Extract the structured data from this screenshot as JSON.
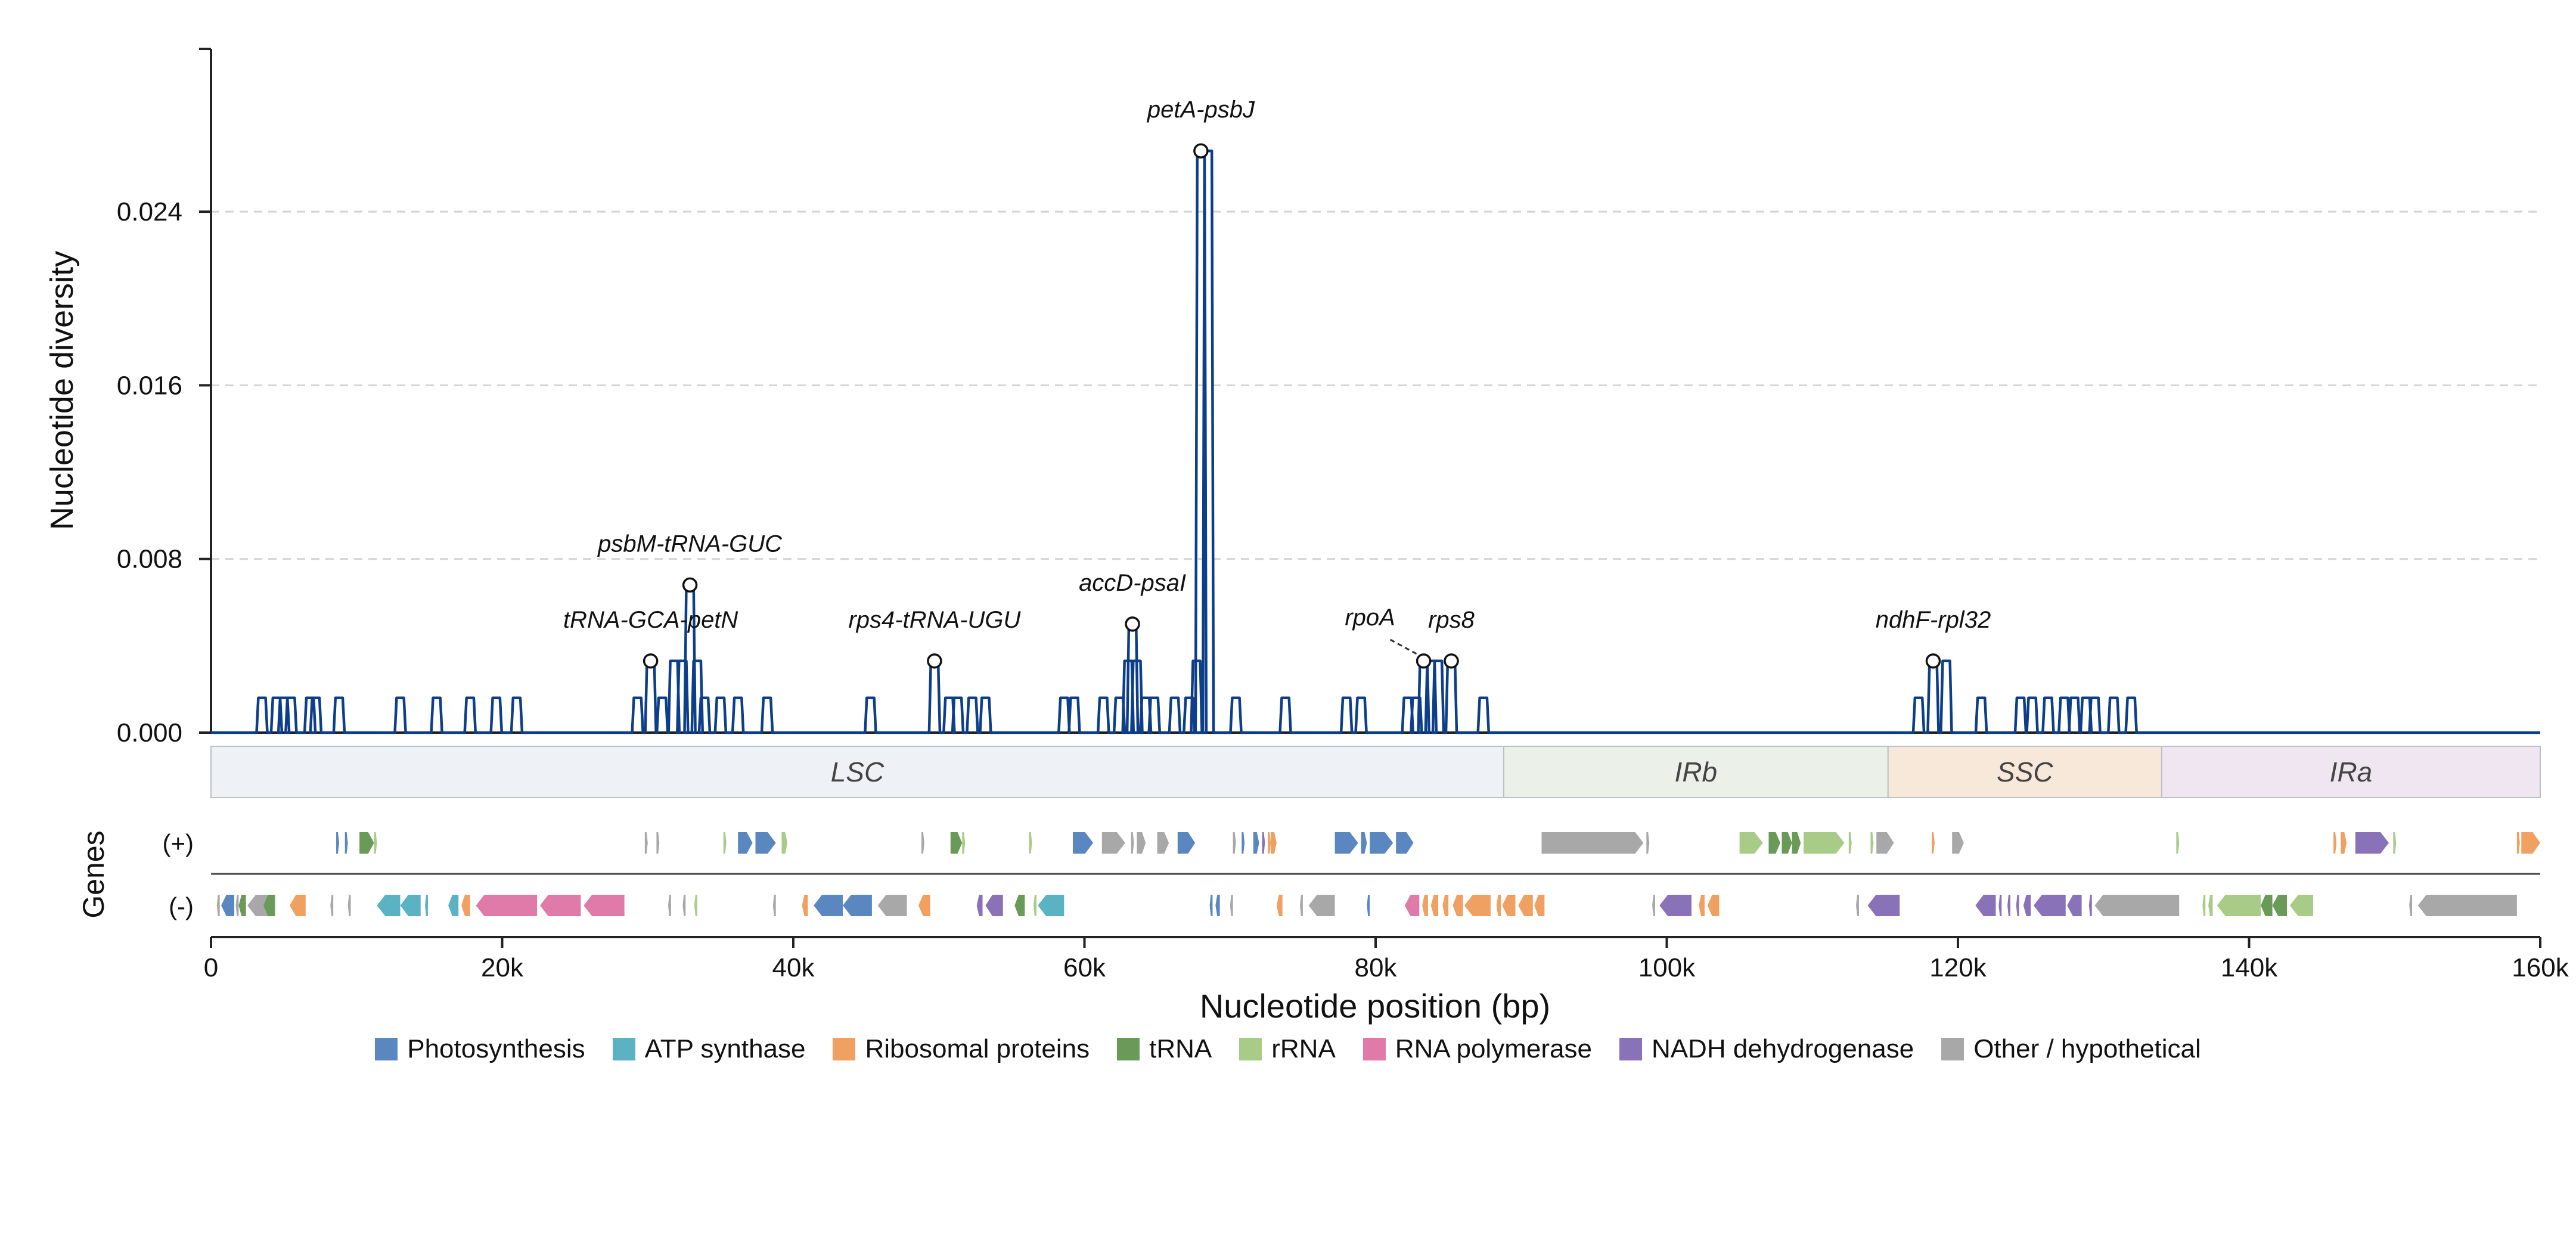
{
  "chart_data": {
    "type": "line",
    "xlabel": "Nucleotide position (bp)",
    "ylabel": "Nucleotide diversity",
    "genes_label": "Genes",
    "strand_labels": {
      "plus": "(+)",
      "minus": "(-)"
    },
    "xlim": [
      0,
      160000
    ],
    "ylim": [
      0,
      0.0315
    ],
    "x_ticks": [
      0,
      20000,
      40000,
      60000,
      80000,
      100000,
      120000,
      140000,
      160000
    ],
    "x_tick_labels": [
      "0",
      "20k",
      "40k",
      "60k",
      "80k",
      "100k",
      "120k",
      "140k",
      "160k"
    ],
    "y_ticks": [
      0.0,
      0.008,
      0.016,
      0.024
    ],
    "y_tick_labels": [
      "0.000",
      "0.008",
      "0.016",
      "0.024"
    ],
    "grid": "horizontal dashed",
    "line_color": "#0d3e8a",
    "regions": [
      {
        "name": "LSC",
        "start": 0,
        "end": 88800,
        "color": "#eef2f6"
      },
      {
        "name": "IRb",
        "start": 88800,
        "end": 115200,
        "color": "#ebf1e8"
      },
      {
        "name": "SSC",
        "start": 115200,
        "end": 134000,
        "color": "#f8e8d9"
      },
      {
        "name": "IRa",
        "start": 134000,
        "end": 160000,
        "color": "#f0e6f1"
      }
    ],
    "peaks": [
      [
        3500,
        0.0016
      ],
      [
        4500,
        0.0016
      ],
      [
        5000,
        0.0016
      ],
      [
        5500,
        0.0016
      ],
      [
        6800,
        0.0016
      ],
      [
        7200,
        0.0016
      ],
      [
        8800,
        0.0016
      ],
      [
        13000,
        0.0016
      ],
      [
        15500,
        0.0016
      ],
      [
        17800,
        0.0016
      ],
      [
        19600,
        0.0016
      ],
      [
        21000,
        0.0016
      ],
      [
        29300,
        0.0016
      ],
      [
        30200,
        0.0033
      ],
      [
        31000,
        0.0016
      ],
      [
        31800,
        0.0033
      ],
      [
        32400,
        0.0033
      ],
      [
        32900,
        0.0068
      ],
      [
        33400,
        0.0033
      ],
      [
        33900,
        0.0016
      ],
      [
        35000,
        0.0016
      ],
      [
        36200,
        0.0016
      ],
      [
        38200,
        0.0016
      ],
      [
        45300,
        0.0016
      ],
      [
        49700,
        0.0033
      ],
      [
        50700,
        0.0016
      ],
      [
        51300,
        0.0016
      ],
      [
        52300,
        0.0016
      ],
      [
        53200,
        0.0016
      ],
      [
        58600,
        0.0016
      ],
      [
        59300,
        0.0016
      ],
      [
        61300,
        0.0016
      ],
      [
        62400,
        0.0016
      ],
      [
        63000,
        0.0033
      ],
      [
        63300,
        0.005
      ],
      [
        63600,
        0.0033
      ],
      [
        64200,
        0.0016
      ],
      [
        64800,
        0.0016
      ],
      [
        66200,
        0.0016
      ],
      [
        67200,
        0.0016
      ],
      [
        67700,
        0.0033
      ],
      [
        68000,
        0.0268
      ],
      [
        68500,
        0.0268
      ],
      [
        70400,
        0.0016
      ],
      [
        73800,
        0.0016
      ],
      [
        78000,
        0.0016
      ],
      [
        79000,
        0.0016
      ],
      [
        82200,
        0.0016
      ],
      [
        82800,
        0.0016
      ],
      [
        83300,
        0.0033
      ],
      [
        83800,
        0.0033
      ],
      [
        84300,
        0.0033
      ],
      [
        85200,
        0.0033
      ],
      [
        87400,
        0.0016
      ],
      [
        117300,
        0.0016
      ],
      [
        118300,
        0.0033
      ],
      [
        119200,
        0.0033
      ],
      [
        121600,
        0.0016
      ],
      [
        124300,
        0.0016
      ],
      [
        125100,
        0.0016
      ],
      [
        126200,
        0.0016
      ],
      [
        127300,
        0.0016
      ],
      [
        128000,
        0.0016
      ],
      [
        128800,
        0.0016
      ],
      [
        129400,
        0.0016
      ],
      [
        130700,
        0.0016
      ],
      [
        131900,
        0.0016
      ]
    ],
    "annotations": [
      {
        "label": "petA-psbJ",
        "x": 68000,
        "y": 0.0268
      },
      {
        "label": "psbM-tRNA-GUC",
        "x": 32900,
        "y": 0.0068
      },
      {
        "label": "tRNA-GCA-petN",
        "x": 30200,
        "y": 0.0033
      },
      {
        "label": "rps4-tRNA-UGU",
        "x": 49700,
        "y": 0.0033
      },
      {
        "label": "accD-psaI",
        "x": 63300,
        "y": 0.005
      },
      {
        "label": "rpoA",
        "x": 83300,
        "y": 0.0033
      },
      {
        "label": "rps8",
        "x": 85200,
        "y": 0.0033
      },
      {
        "label": "ndhF-rpl32",
        "x": 118300,
        "y": 0.0033
      }
    ],
    "categories": [
      {
        "name": "Photosynthesis",
        "color": "#5b87c0"
      },
      {
        "name": "ATP synthase",
        "color": "#5ab2c2"
      },
      {
        "name": "Ribosomal proteins",
        "color": "#f0a060"
      },
      {
        "name": "tRNA",
        "color": "#6a9a58"
      },
      {
        "name": "rRNA",
        "color": "#a8cc88"
      },
      {
        "name": "RNA polymerase",
        "color": "#e07aa8"
      },
      {
        "name": "NADH dehydrogenase",
        "color": "#8a72b8"
      },
      {
        "name": "Other / hypothetical",
        "color": "#a8a8a8"
      }
    ],
    "genes_plus": [
      [
        8600,
        8800,
        0
      ],
      [
        9200,
        9400,
        0
      ],
      [
        10200,
        11200,
        3
      ],
      [
        11200,
        11400,
        4
      ],
      [
        29800,
        30000,
        7
      ],
      [
        30600,
        30800,
        7
      ],
      [
        35200,
        35400,
        4
      ],
      [
        36200,
        37200,
        0
      ],
      [
        37400,
        38800,
        0
      ],
      [
        39200,
        39600,
        4
      ],
      [
        48800,
        49000,
        7
      ],
      [
        50800,
        51600,
        3
      ],
      [
        51600,
        51800,
        4
      ],
      [
        56200,
        56400,
        4
      ],
      [
        59200,
        60600,
        0
      ],
      [
        61200,
        62800,
        7
      ],
      [
        63200,
        63400,
        7
      ],
      [
        63600,
        64200,
        7
      ],
      [
        65000,
        65800,
        7
      ],
      [
        66400,
        67600,
        0
      ],
      [
        70200,
        70400,
        7
      ],
      [
        70800,
        71000,
        0
      ],
      [
        71600,
        72000,
        0
      ],
      [
        72200,
        72400,
        6
      ],
      [
        72600,
        72800,
        2
      ],
      [
        72800,
        73200,
        2
      ],
      [
        77200,
        78800,
        0
      ],
      [
        79000,
        79400,
        0
      ],
      [
        79600,
        81200,
        0
      ],
      [
        81400,
        82600,
        0
      ],
      [
        91400,
        98400,
        7
      ],
      [
        98600,
        98800,
        7
      ],
      [
        105000,
        106600,
        4
      ],
      [
        107000,
        107800,
        3
      ],
      [
        107900,
        108600,
        3
      ],
      [
        108600,
        109200,
        3
      ],
      [
        109400,
        112200,
        4
      ],
      [
        112500,
        112700,
        4
      ],
      [
        114000,
        114200,
        4
      ],
      [
        114400,
        115600,
        7
      ],
      [
        118200,
        118400,
        2
      ],
      [
        119600,
        120400,
        7
      ],
      [
        135000,
        135200,
        4
      ],
      [
        145800,
        146000,
        2
      ],
      [
        146300,
        146700,
        2
      ],
      [
        147300,
        149600,
        6
      ],
      [
        149900,
        150100,
        4
      ],
      [
        158400,
        158600,
        2
      ],
      [
        158700,
        160000,
        2
      ]
    ],
    "genes_minus": [
      [
        400,
        600,
        7
      ],
      [
        700,
        1600,
        0
      ],
      [
        1700,
        1900,
        7
      ],
      [
        1900,
        2400,
        3
      ],
      [
        2500,
        4200,
        7
      ],
      [
        3600,
        4400,
        3
      ],
      [
        5400,
        6500,
        2
      ],
      [
        8200,
        8400,
        7
      ],
      [
        9400,
        9600,
        7
      ],
      [
        11400,
        13000,
        1
      ],
      [
        13000,
        14400,
        1
      ],
      [
        14700,
        14900,
        1
      ],
      [
        16300,
        17000,
        1
      ],
      [
        17200,
        17800,
        2
      ],
      [
        18200,
        22400,
        5
      ],
      [
        22600,
        25400,
        5
      ],
      [
        25600,
        28400,
        5
      ],
      [
        31400,
        31600,
        7
      ],
      [
        32400,
        32600,
        7
      ],
      [
        33200,
        33400,
        4
      ],
      [
        38600,
        38800,
        7
      ],
      [
        40600,
        41000,
        2
      ],
      [
        41400,
        43400,
        0
      ],
      [
        43400,
        45400,
        0
      ],
      [
        45800,
        47800,
        7
      ],
      [
        48600,
        49400,
        2
      ],
      [
        52600,
        53000,
        6
      ],
      [
        53200,
        54400,
        6
      ],
      [
        55200,
        55900,
        3
      ],
      [
        56500,
        56700,
        4
      ],
      [
        56800,
        58600,
        1
      ],
      [
        68600,
        68800,
        0
      ],
      [
        69000,
        69300,
        0
      ],
      [
        70000,
        70200,
        7
      ],
      [
        73200,
        73600,
        2
      ],
      [
        74800,
        75000,
        7
      ],
      [
        75400,
        77200,
        7
      ],
      [
        79400,
        79600,
        0
      ],
      [
        82000,
        83000,
        5
      ],
      [
        83200,
        83600,
        2
      ],
      [
        83800,
        84300,
        2
      ],
      [
        84600,
        85000,
        2
      ],
      [
        85300,
        86000,
        2
      ],
      [
        86100,
        87900,
        2
      ],
      [
        88300,
        88600,
        2
      ],
      [
        88700,
        89600,
        2
      ],
      [
        89800,
        90800,
        2
      ],
      [
        90900,
        91600,
        2
      ],
      [
        99000,
        99200,
        7
      ],
      [
        99500,
        101700,
        6
      ],
      [
        102200,
        102600,
        2
      ],
      [
        102800,
        103600,
        2
      ],
      [
        113000,
        113200,
        7
      ],
      [
        113800,
        116000,
        6
      ],
      [
        121200,
        122600,
        6
      ],
      [
        122800,
        123000,
        6
      ],
      [
        123400,
        123600,
        6
      ],
      [
        124000,
        124200,
        6
      ],
      [
        124500,
        125000,
        6
      ],
      [
        125200,
        127400,
        6
      ],
      [
        127500,
        128500,
        6
      ],
      [
        129000,
        129200,
        6
      ],
      [
        129400,
        135200,
        7
      ],
      [
        136800,
        137000,
        4
      ],
      [
        137200,
        137500,
        4
      ],
      [
        137800,
        140800,
        4
      ],
      [
        140800,
        141600,
        3
      ],
      [
        141600,
        142600,
        3
      ],
      [
        142800,
        144400,
        4
      ],
      [
        151000,
        151200,
        7
      ],
      [
        151600,
        158400,
        7
      ]
    ]
  }
}
